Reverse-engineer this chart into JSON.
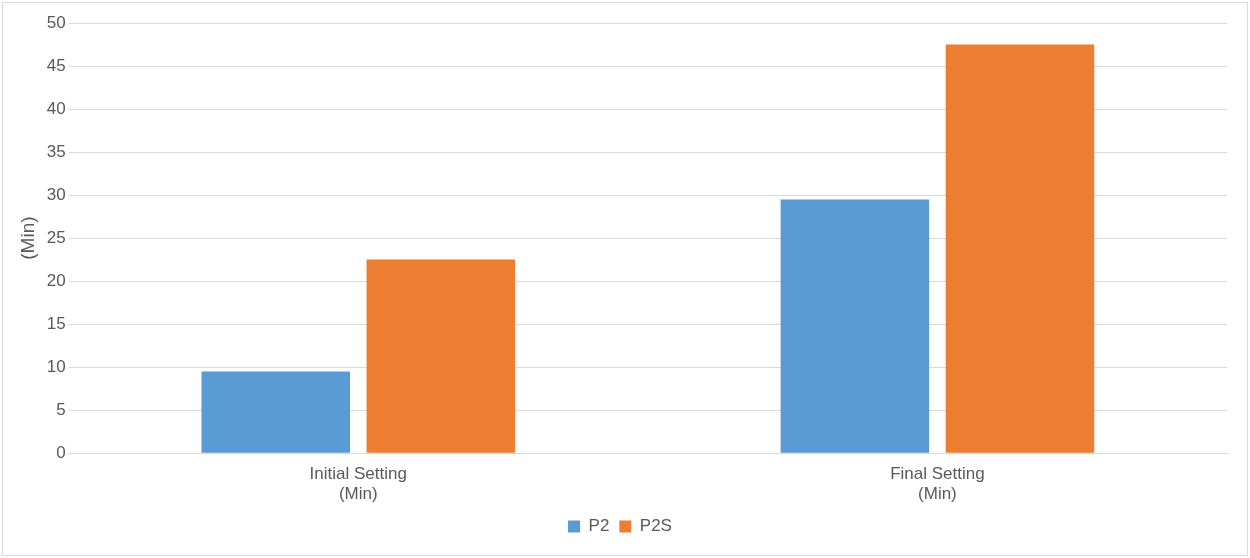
{
  "chart_data": {
    "type": "bar",
    "ylabel": "(Min)",
    "categories": [
      "Initial Setting\n(Min)",
      "Final Setting\n(Min)"
    ],
    "series": [
      {
        "name": "P2",
        "color": "#5b9bd5",
        "values": [
          9.5,
          29.5
        ]
      },
      {
        "name": "P2S",
        "color": "#ed7d31",
        "values": [
          22.5,
          47.5
        ]
      }
    ],
    "ylim": [
      0,
      50
    ],
    "yticks": [
      0,
      5,
      10,
      15,
      20,
      25,
      30,
      35,
      40,
      45,
      50
    ],
    "grid": "y",
    "legend": "bottom"
  }
}
